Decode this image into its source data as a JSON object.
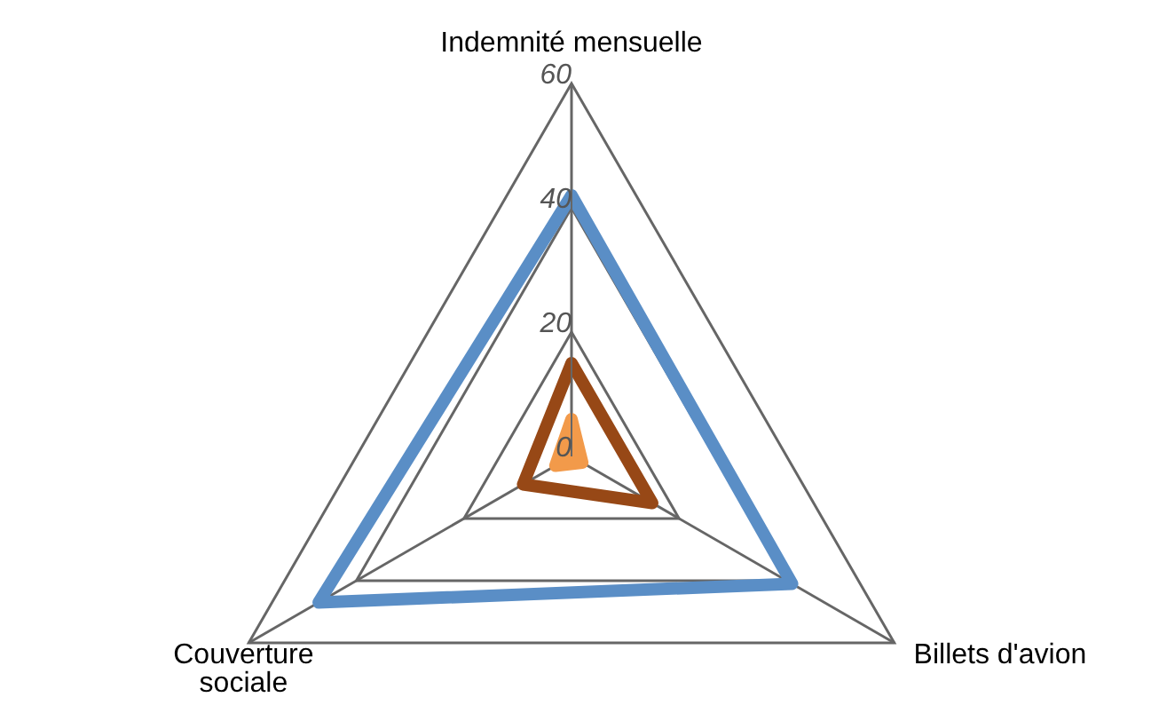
{
  "chart_data": {
    "type": "radar",
    "categories": [
      "Indemnité mensuelle",
      "Billets d'avion",
      "Couverture sociale"
    ],
    "ylim": [
      0,
      60
    ],
    "yticks": [
      0,
      20,
      40,
      60
    ],
    "grid": true,
    "series": [
      {
        "color": "#5a8ec6",
        "values": [
          42,
          41,
          47
        ]
      },
      {
        "color": "#974816",
        "values": [
          15,
          15,
          9
        ]
      },
      {
        "type": "area",
        "color": "#f29a4a",
        "values": [
          6,
          2,
          3
        ]
      }
    ]
  }
}
